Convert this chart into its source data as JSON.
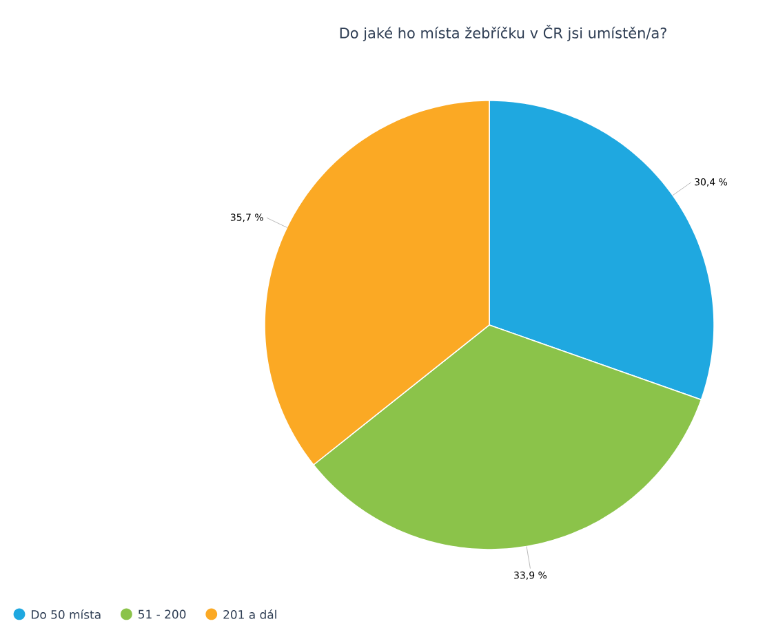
{
  "chart_data": {
    "type": "pie",
    "title": "Do jaké ho místa žebříčku v ČR jsi umístěn/a?",
    "categories": [
      "Do 50 místa",
      "51 - 200",
      "201 a dál"
    ],
    "values": [
      30.4,
      33.9,
      35.7
    ],
    "colors": [
      "#1fa8e0",
      "#8bc34a",
      "#fba924"
    ],
    "value_labels": [
      "30,4 %",
      "33,9 %",
      "35,7 %"
    ],
    "legend": "bottom"
  }
}
